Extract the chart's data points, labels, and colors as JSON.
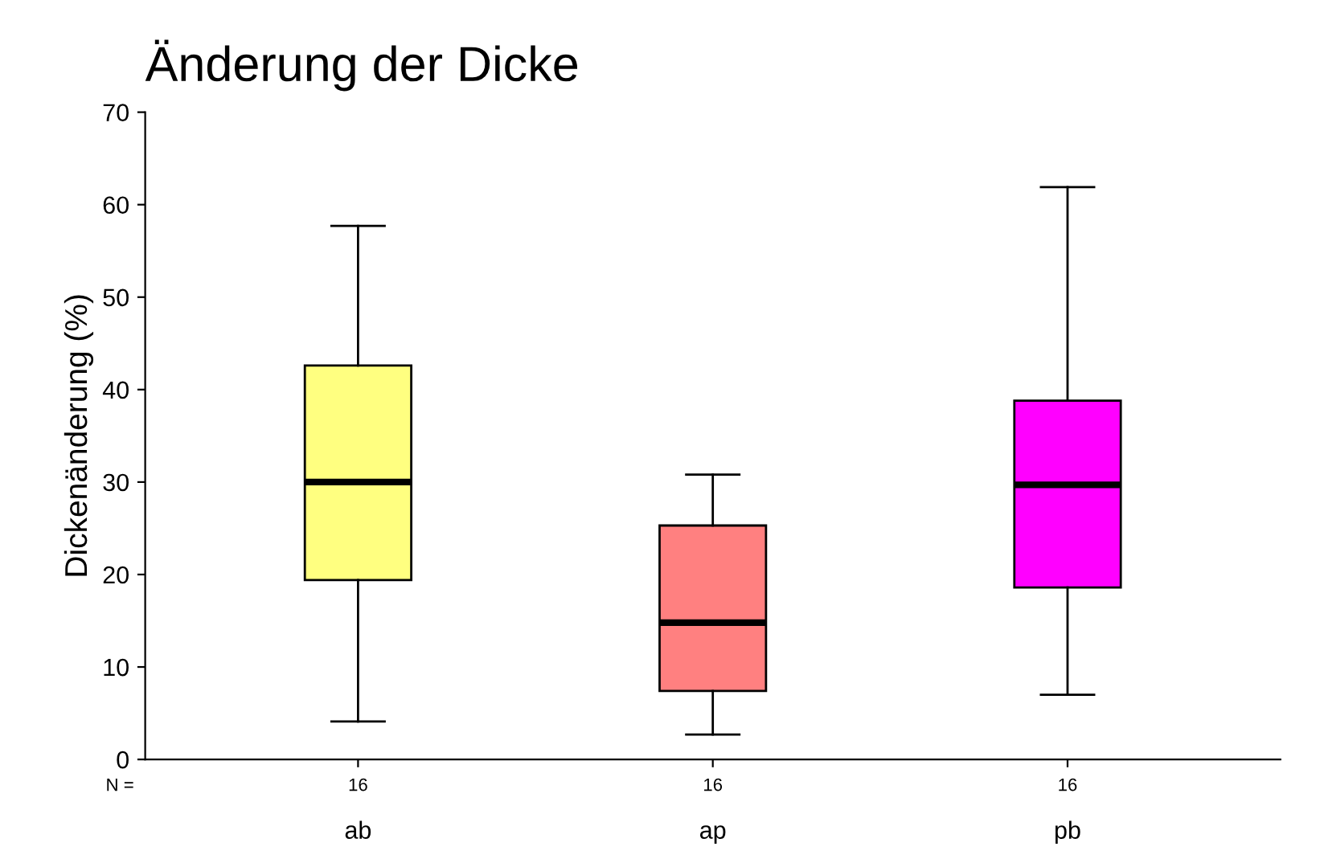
{
  "chart_data": {
    "type": "box",
    "title": "Änderung der Dicke",
    "ylabel": "Dickenänderung (%)",
    "categories": [
      "ab",
      "ap",
      "pb"
    ],
    "colors": [
      "#ffff80",
      "#ff8080",
      "#ff00ff"
    ],
    "boxes": [
      {
        "low": 4.1,
        "q1": 19.4,
        "median": 30.0,
        "q3": 42.6,
        "high": 57.7
      },
      {
        "low": 2.7,
        "q1": 7.4,
        "median": 14.8,
        "q3": 25.3,
        "high": 30.8
      },
      {
        "low": 7.0,
        "q1": 18.6,
        "median": 29.7,
        "q3": 38.8,
        "high": 61.9
      }
    ],
    "ylim": [
      0,
      70
    ],
    "yticks": [
      0,
      10,
      20,
      30,
      40,
      50,
      60,
      70
    ],
    "grid": false,
    "annotations": [
      "N =",
      "16",
      "16",
      "16"
    ]
  }
}
